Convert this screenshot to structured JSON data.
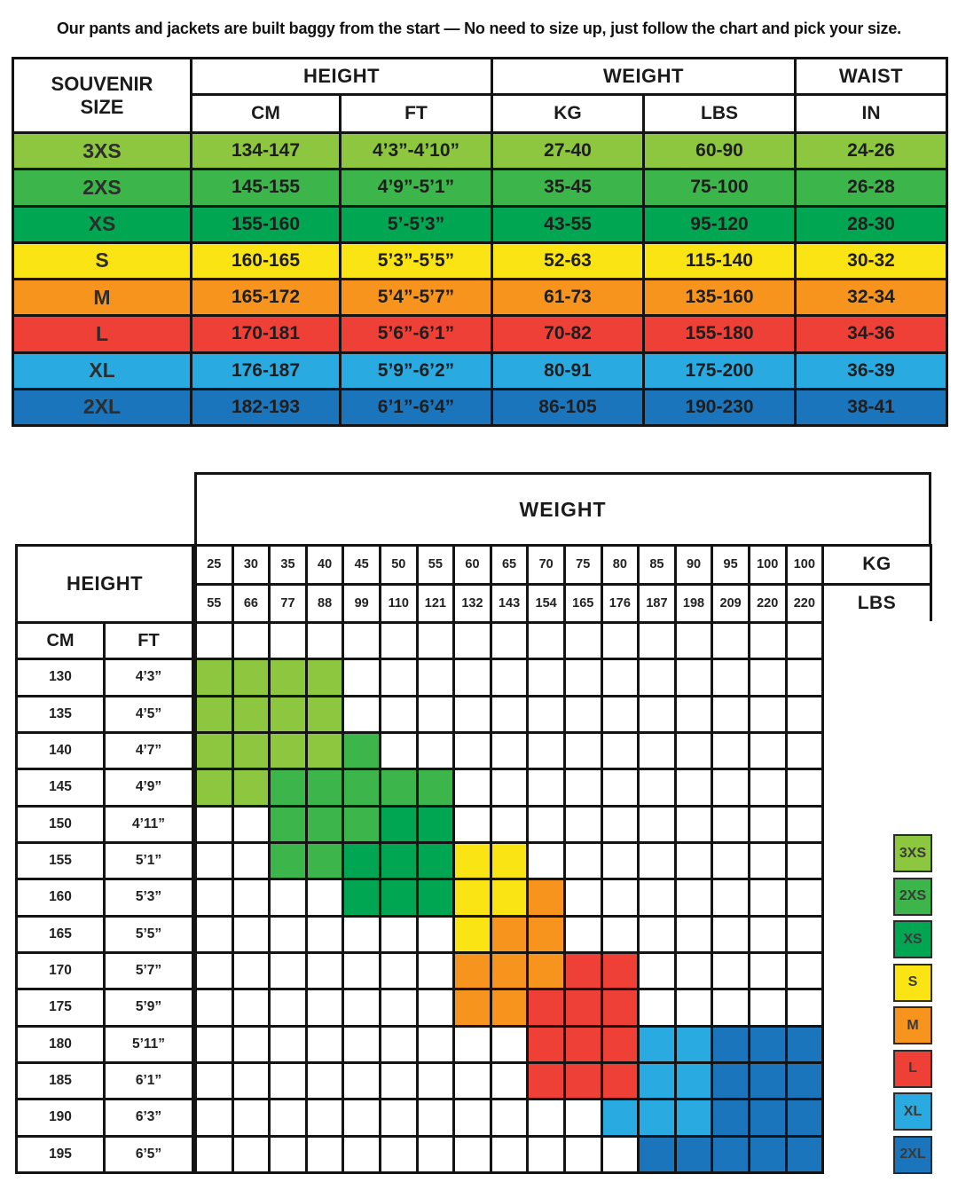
{
  "title": "Our pants and jackets are built baggy from the start — No need to size up, just follow the chart and pick your size.",
  "labels": {
    "corner": "SOUVENIR SIZE",
    "height": "HEIGHT",
    "weight": "WEIGHT",
    "waist": "WAIST",
    "cm": "CM",
    "ft": "FT",
    "kg": "KG",
    "lbs": "LBS",
    "in": "IN"
  },
  "colors": {
    "3XS": "#8DC63F",
    "2XS": "#3CB54A",
    "XS": "#00A651",
    "S": "#FAE414",
    "M": "#F7941D",
    "L": "#EE4036",
    "XL": "#29ABE2",
    "2XL": "#1B75BC",
    "grid_line": "#141414",
    "text": "#1b1b1b"
  },
  "chart_data": [
    {
      "type": "table",
      "title": "SOUVENIR SIZE",
      "columns": [
        "SIZE",
        "HEIGHT CM",
        "HEIGHT FT",
        "WEIGHT KG",
        "WEIGHT LBS",
        "WAIST IN"
      ],
      "rows": [
        [
          "3XS",
          "134-147",
          "4’3”-4’10”",
          "27-40",
          "60-90",
          "24-26"
        ],
        [
          "2XS",
          "145-155",
          "4’9”-5’1”",
          "35-45",
          "75-100",
          "26-28"
        ],
        [
          "XS",
          "155-160",
          "5’-5’3”",
          "43-55",
          "95-120",
          "28-30"
        ],
        [
          "S",
          "160-165",
          "5’3”-5’5”",
          "52-63",
          "115-140",
          "30-32"
        ],
        [
          "M",
          "165-172",
          "5’4”-5’7”",
          "61-73",
          "135-160",
          "32-34"
        ],
        [
          "L",
          "170-181",
          "5’6”-6’1”",
          "70-82",
          "155-180",
          "34-36"
        ],
        [
          "XL",
          "176-187",
          "5’9”-6’2”",
          "80-91",
          "175-200",
          "36-39"
        ],
        [
          "2XL",
          "182-193",
          "6’1”-6’4”",
          "86-105",
          "190-230",
          "38-41"
        ]
      ]
    },
    {
      "type": "heatmap",
      "title": "Height by weight size finder grid",
      "x_label": "WEIGHT",
      "y_label": "HEIGHT",
      "x_kg": [
        "25",
        "30",
        "35",
        "40",
        "45",
        "50",
        "55",
        "60",
        "65",
        "70",
        "75",
        "80",
        "85",
        "90",
        "95",
        "100",
        "100"
      ],
      "x_lbs": [
        "55",
        "66",
        "77",
        "88",
        "99",
        "110",
        "121",
        "132",
        "143",
        "154",
        "165",
        "176",
        "187",
        "198",
        "209",
        "220",
        "220"
      ],
      "y_cm": [
        "130",
        "135",
        "140",
        "145",
        "150",
        "155",
        "160",
        "165",
        "170",
        "175",
        "180",
        "185",
        "190",
        "195"
      ],
      "y_ft": [
        "4’3”",
        "4’5”",
        "4’7”",
        "4’9”",
        "4’11”",
        "5’1”",
        "5’3”",
        "5’5”",
        "5’7”",
        "5’9”",
        "5’11”",
        "6’1”",
        "6’3”",
        "6’5”"
      ],
      "values": [
        [
          "3XS",
          "3XS",
          "3XS",
          "3XS",
          "",
          "",
          "",
          "",
          "",
          "",
          "",
          "",
          "",
          "",
          "",
          "",
          ""
        ],
        [
          "3XS",
          "3XS",
          "3XS",
          "3XS",
          "",
          "",
          "",
          "",
          "",
          "",
          "",
          "",
          "",
          "",
          "",
          "",
          ""
        ],
        [
          "3XS",
          "3XS",
          "3XS",
          "3XS",
          "2XS",
          "",
          "",
          "",
          "",
          "",
          "",
          "",
          "",
          "",
          "",
          "",
          ""
        ],
        [
          "3XS",
          "3XS",
          "2XS",
          "2XS",
          "2XS",
          "2XS",
          "2XS",
          "",
          "",
          "",
          "",
          "",
          "",
          "",
          "",
          "",
          ""
        ],
        [
          "",
          "",
          "2XS",
          "2XS",
          "2XS",
          "XS",
          "XS",
          "",
          "",
          "",
          "",
          "",
          "",
          "",
          "",
          "",
          ""
        ],
        [
          "",
          "",
          "2XS",
          "2XS",
          "XS",
          "XS",
          "XS",
          "S",
          "S",
          "",
          "",
          "",
          "",
          "",
          "",
          "",
          ""
        ],
        [
          "",
          "",
          "",
          "",
          "XS",
          "XS",
          "XS",
          "S",
          "S",
          "M",
          "",
          "",
          "",
          "",
          "",
          "",
          ""
        ],
        [
          "",
          "",
          "",
          "",
          "",
          "",
          "",
          "S",
          "M",
          "M",
          "",
          "",
          "",
          "",
          "",
          "",
          ""
        ],
        [
          "",
          "",
          "",
          "",
          "",
          "",
          "",
          "M",
          "M",
          "M",
          "L",
          "L",
          "",
          "",
          "",
          "",
          ""
        ],
        [
          "",
          "",
          "",
          "",
          "",
          "",
          "",
          "M",
          "M",
          "L",
          "L",
          "L",
          "",
          "",
          "",
          "",
          ""
        ],
        [
          "",
          "",
          "",
          "",
          "",
          "",
          "",
          "",
          "",
          "L",
          "L",
          "L",
          "XL",
          "XL",
          "2XL",
          "2XL",
          "2XL"
        ],
        [
          "",
          "",
          "",
          "",
          "",
          "",
          "",
          "",
          "",
          "L",
          "L",
          "L",
          "XL",
          "XL",
          "2XL",
          "2XL",
          "2XL"
        ],
        [
          "",
          "",
          "",
          "",
          "",
          "",
          "",
          "",
          "",
          "",
          "",
          "XL",
          "XL",
          "XL",
          "2XL",
          "2XL",
          "2XL"
        ],
        [
          "",
          "",
          "",
          "",
          "",
          "",
          "",
          "",
          "",
          "",
          "",
          "",
          "2XL",
          "2XL",
          "2XL",
          "2XL",
          "2XL"
        ]
      ],
      "legend": [
        "3XS",
        "2XS",
        "XS",
        "S",
        "M",
        "L",
        "XL",
        "2XL"
      ],
      "legend_position": "right"
    }
  ]
}
